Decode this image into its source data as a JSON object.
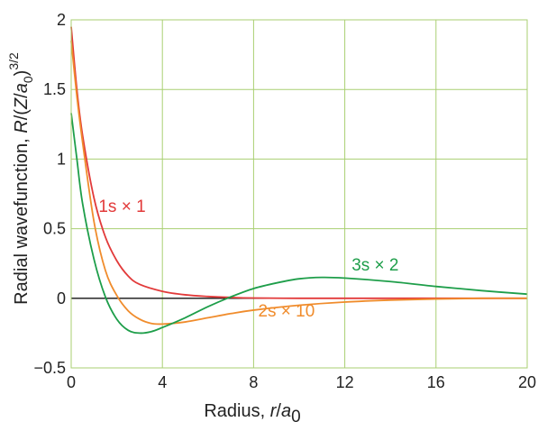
{
  "chart_data": {
    "type": "line",
    "xlabel": "Radius, r/a0",
    "ylabel": "Radial wavefunction, R/(Z/a0)^3/2",
    "xlim": [
      0,
      20
    ],
    "ylim": [
      -0.5,
      2
    ],
    "x_ticks": [
      "0",
      "4",
      "8",
      "12",
      "16",
      "20"
    ],
    "y_ticks": [
      "−0.5",
      "0",
      "0.5",
      "1",
      "1.5",
      "2"
    ],
    "grid": true,
    "grid_color": "#a9cf72",
    "series": [
      {
        "name": "1s × 1",
        "color": "#e23a3a",
        "x": [
          0,
          0.25,
          0.5,
          1,
          1.5,
          2,
          2.5,
          3,
          4,
          5,
          6,
          7,
          8,
          10,
          12,
          16,
          20
        ],
        "y": [
          1.95,
          1.5,
          1.17,
          0.72,
          0.44,
          0.27,
          0.16,
          0.1,
          0.05,
          0.025,
          0.013,
          0.006,
          0.002,
          0,
          0,
          0,
          0
        ]
      },
      {
        "name": "2s × 10",
        "color": "#f08c2c",
        "x": [
          0,
          0.25,
          0.5,
          1,
          1.5,
          2,
          2.5,
          3,
          3.5,
          4,
          5,
          6,
          7,
          8,
          10,
          12,
          14,
          16,
          18,
          20
        ],
        "y": [
          1.85,
          1.45,
          1.12,
          0.55,
          0.2,
          0.02,
          -0.09,
          -0.15,
          -0.18,
          -0.185,
          -0.17,
          -0.14,
          -0.11,
          -0.085,
          -0.05,
          -0.027,
          -0.013,
          -0.005,
          0,
          0
        ]
      },
      {
        "name": "3s × 2",
        "color": "#1e9e4a",
        "x": [
          0,
          0.25,
          0.5,
          1,
          1.5,
          2,
          2.5,
          3,
          3.5,
          4,
          5,
          6,
          7,
          8,
          9,
          10,
          11,
          12,
          14,
          16,
          18,
          20
        ],
        "y": [
          1.33,
          1.0,
          0.68,
          0.28,
          0.01,
          -0.15,
          -0.23,
          -0.25,
          -0.24,
          -0.21,
          -0.14,
          -0.06,
          0.01,
          0.07,
          0.11,
          0.14,
          0.15,
          0.145,
          0.12,
          0.085,
          0.055,
          0.03
        ]
      }
    ]
  }
}
